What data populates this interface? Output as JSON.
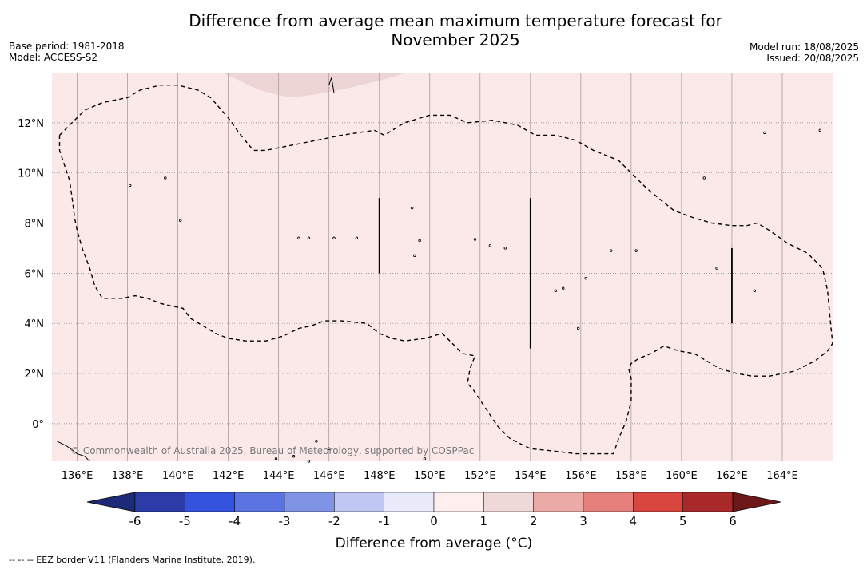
{
  "title": "Difference from average mean maximum temperature forecast for November 2025",
  "title_line1": "Difference from average mean maximum temperature forecast for",
  "title_line2": "November 2025",
  "base_period": "Base period: 1981-2018",
  "model": "Model: ACCESS-S2",
  "model_run": "Model run: 18/08/2025",
  "issued": "Issued: 20/08/2025",
  "copyright": "© Commonwealth of Australia 2025, Bureau of Meteorology, supported by COSPPac",
  "footnote": "--  --  -- EEZ border V11 (Flanders Marine Institute, 2019).",
  "map": {
    "lon_range": [
      135.0,
      166.0
    ],
    "lat_range": [
      -1.5,
      14.0
    ],
    "lon_ticks": [
      "136°E",
      "138°E",
      "140°E",
      "142°E",
      "144°E",
      "146°E",
      "148°E",
      "150°E",
      "152°E",
      "154°E",
      "156°E",
      "158°E",
      "160°E",
      "162°E",
      "164°E"
    ],
    "lon_tick_values": [
      136,
      138,
      140,
      142,
      144,
      146,
      148,
      150,
      152,
      154,
      156,
      158,
      160,
      162,
      164
    ],
    "lat_ticks": [
      "0°",
      "2°N",
      "4°N",
      "6°N",
      "8°N",
      "10°N",
      "12°N"
    ],
    "lat_tick_values": [
      0,
      2,
      4,
      6,
      8,
      10,
      12
    ],
    "background_category": "0 to 1",
    "background_color": "#fbe9e9",
    "patch_category": "1 to 2",
    "patch_color": "#eed5d5",
    "eez_style": "dashed black",
    "eez_points": [
      [
        135.3,
        11.5
      ],
      [
        135.8,
        12.0
      ],
      [
        136.3,
        12.5
      ],
      [
        137.0,
        12.8
      ],
      [
        138.0,
        13.0
      ],
      [
        138.5,
        13.3
      ],
      [
        139.3,
        13.5
      ],
      [
        140.0,
        13.5
      ],
      [
        140.8,
        13.3
      ],
      [
        141.3,
        13.0
      ],
      [
        142.0,
        12.2
      ],
      [
        142.5,
        11.5
      ],
      [
        143.0,
        10.9
      ],
      [
        143.5,
        10.9
      ],
      [
        145.0,
        11.2
      ],
      [
        146.5,
        11.5
      ],
      [
        147.8,
        11.7
      ],
      [
        148.2,
        11.5
      ],
      [
        149.0,
        12.0
      ],
      [
        150.0,
        12.3
      ],
      [
        150.8,
        12.3
      ],
      [
        151.5,
        12.0
      ],
      [
        152.5,
        12.1
      ],
      [
        153.5,
        11.9
      ],
      [
        154.2,
        11.5
      ],
      [
        155.0,
        11.5
      ],
      [
        155.8,
        11.3
      ],
      [
        156.5,
        10.9
      ],
      [
        157.5,
        10.5
      ],
      [
        158.0,
        10.0
      ],
      [
        158.6,
        9.4
      ],
      [
        159.2,
        8.9
      ],
      [
        159.7,
        8.5
      ],
      [
        160.5,
        8.2
      ],
      [
        161.2,
        8.0
      ],
      [
        162.0,
        7.9
      ],
      [
        162.6,
        7.9
      ],
      [
        163.0,
        8.0
      ],
      [
        163.5,
        7.7
      ],
      [
        164.2,
        7.2
      ],
      [
        165.0,
        6.8
      ],
      [
        165.6,
        6.2
      ],
      [
        165.8,
        5.3
      ],
      [
        165.9,
        4.2
      ],
      [
        166.0,
        3.2
      ],
      [
        165.8,
        2.9
      ],
      [
        165.3,
        2.5
      ],
      [
        164.5,
        2.1
      ],
      [
        163.5,
        1.9
      ],
      [
        162.8,
        1.9
      ],
      [
        162.2,
        2.0
      ],
      [
        161.5,
        2.2
      ],
      [
        161.0,
        2.5
      ],
      [
        160.5,
        2.8
      ],
      [
        159.9,
        2.9
      ],
      [
        159.3,
        3.1
      ],
      [
        158.8,
        2.8
      ],
      [
        158.3,
        2.6
      ],
      [
        158.0,
        2.4
      ],
      [
        157.9,
        2.2
      ],
      [
        158.0,
        1.8
      ],
      [
        158.0,
        0.9
      ],
      [
        157.8,
        0.1
      ],
      [
        157.5,
        -0.6
      ],
      [
        157.3,
        -1.2
      ],
      [
        156.8,
        -1.2
      ],
      [
        155.8,
        -1.2
      ],
      [
        155.0,
        -1.1
      ],
      [
        154.0,
        -1.0
      ],
      [
        153.2,
        -0.6
      ],
      [
        152.7,
        -0.1
      ],
      [
        152.3,
        0.5
      ],
      [
        151.7,
        1.4
      ],
      [
        151.5,
        1.6
      ],
      [
        151.6,
        2.2
      ],
      [
        151.8,
        2.7
      ],
      [
        151.3,
        2.8
      ],
      [
        150.8,
        3.3
      ],
      [
        150.5,
        3.6
      ],
      [
        149.8,
        3.4
      ],
      [
        149.0,
        3.3
      ],
      [
        148.5,
        3.4
      ],
      [
        148.0,
        3.6
      ],
      [
        147.5,
        4.0
      ],
      [
        146.5,
        4.1
      ],
      [
        145.8,
        4.1
      ],
      [
        145.3,
        3.9
      ],
      [
        144.8,
        3.8
      ],
      [
        144.2,
        3.5
      ],
      [
        143.5,
        3.3
      ],
      [
        142.7,
        3.3
      ],
      [
        142.0,
        3.4
      ],
      [
        141.5,
        3.6
      ],
      [
        141.0,
        3.9
      ],
      [
        140.5,
        4.2
      ],
      [
        140.2,
        4.6
      ],
      [
        139.7,
        4.7
      ],
      [
        139.3,
        4.8
      ],
      [
        138.8,
        5.0
      ],
      [
        138.3,
        5.1
      ],
      [
        137.8,
        5.0
      ],
      [
        137.2,
        5.0
      ],
      [
        137.0,
        5.0
      ],
      [
        136.7,
        5.5
      ],
      [
        136.5,
        6.2
      ],
      [
        136.2,
        7.0
      ],
      [
        136.0,
        7.7
      ],
      [
        135.9,
        8.2
      ],
      [
        135.8,
        9.0
      ],
      [
        135.7,
        9.7
      ],
      [
        135.5,
        10.3
      ],
      [
        135.3,
        10.9
      ],
      [
        135.3,
        11.5
      ]
    ],
    "region_lines": [
      {
        "lon": 148.0,
        "lat_from": 6.0,
        "lat_to": 9.0
      },
      {
        "lon": 154.0,
        "lat_from": 3.0,
        "lat_to": 9.0
      },
      {
        "lon": 162.0,
        "lat_from": 4.0,
        "lat_to": 7.0
      }
    ],
    "islands": [
      [
        138.1,
        9.5
      ],
      [
        144.8,
        7.4
      ],
      [
        146.2,
        7.4
      ],
      [
        147.1,
        7.4
      ],
      [
        149.6,
        7.3
      ],
      [
        151.8,
        7.35
      ],
      [
        152.4,
        7.1
      ],
      [
        155.3,
        5.4
      ],
      [
        155.0,
        5.3
      ],
      [
        157.2,
        6.9
      ],
      [
        158.2,
        6.9
      ],
      [
        161.4,
        6.2
      ],
      [
        162.9,
        5.3
      ],
      [
        160.9,
        9.8
      ],
      [
        163.3,
        11.6
      ],
      [
        165.5,
        11.7
      ],
      [
        139.5,
        9.8
      ],
      [
        140.1,
        8.1
      ],
      [
        149.3,
        8.6
      ],
      [
        149.4,
        6.7
      ],
      [
        155.9,
        3.8
      ],
      [
        153.0,
        7.0
      ],
      [
        156.2,
        5.8
      ],
      [
        145.2,
        7.4
      ],
      [
        149.8,
        -1.4
      ],
      [
        143.9,
        -1.4
      ],
      [
        145.5,
        -0.7
      ],
      [
        146.0,
        -1.0
      ],
      [
        145.2,
        -1.5
      ],
      [
        144.6,
        -1.3
      ]
    ],
    "saipan": [
      [
        146.2,
        13.2
      ],
      [
        146.1,
        13.8
      ],
      [
        146.0,
        13.5
      ]
    ]
  },
  "colorbar": {
    "label": "Difference from average (°C)",
    "tick_labels": [
      "-6",
      "-5",
      "-4",
      "-3",
      "-2",
      "-1",
      "0",
      "1",
      "2",
      "3",
      "4",
      "5",
      "6"
    ],
    "under_color": "#1d2a78",
    "over_color": "#6e1919",
    "colors": [
      "#2b3ba8",
      "#3352de",
      "#5b74e1",
      "#8094e6",
      "#c0c7f2",
      "#e9ebfa",
      "#fcefee",
      "#efd9d8",
      "#ebaaa6",
      "#e5807c",
      "#d8463f",
      "#a9292a"
    ]
  }
}
